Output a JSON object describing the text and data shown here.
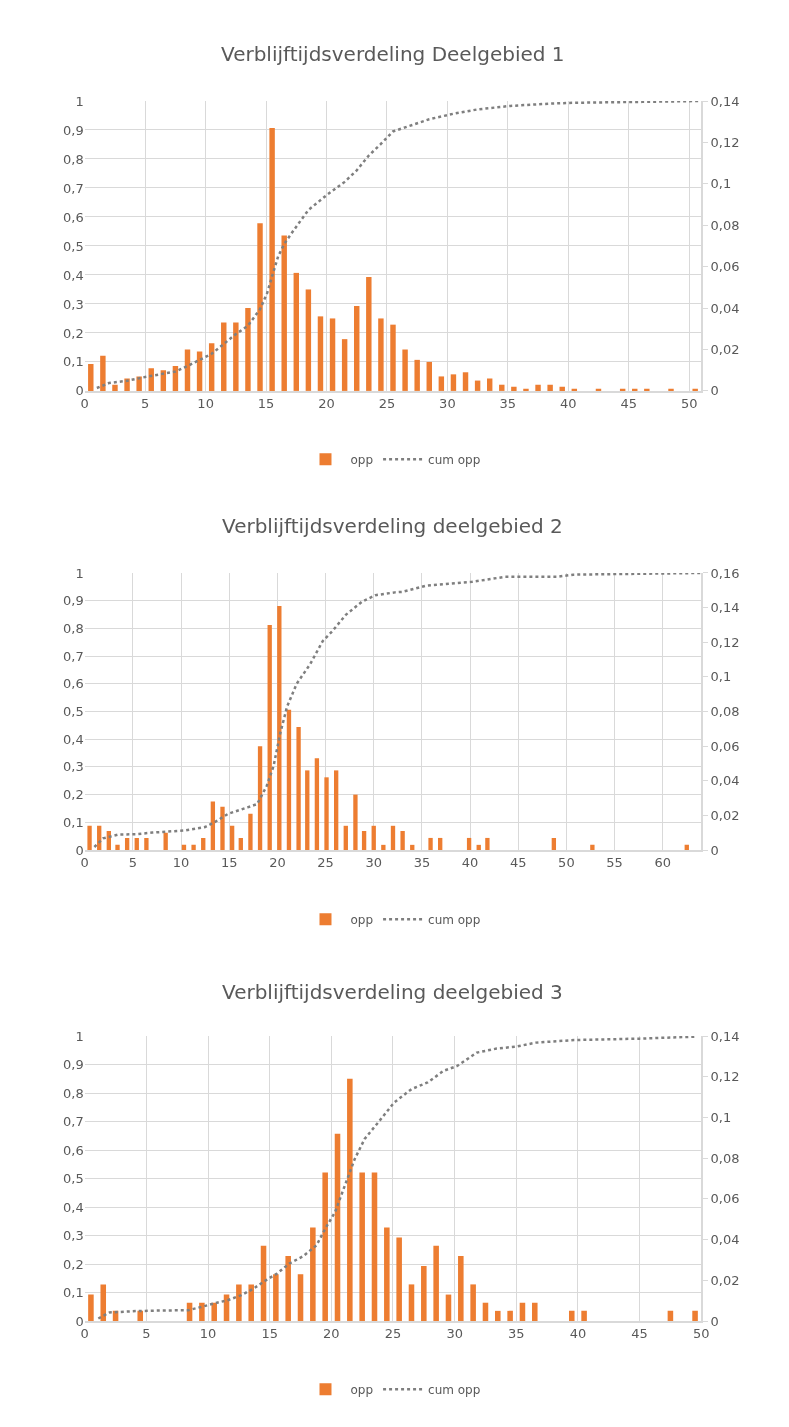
{
  "chart_data": [
    {
      "type": "bar",
      "title": "Verblijftijdsverdeling Deelgebied 1",
      "grid": true,
      "legend": "bottom",
      "xlim": [
        0,
        51
      ],
      "xticks": [
        0,
        5,
        10,
        15,
        20,
        25,
        30,
        35,
        40,
        45,
        50
      ],
      "ylim": [
        0,
        1
      ],
      "yticks": [
        0,
        {
          "value": 0.1,
          "label": "0,1"
        },
        {
          "value": 0.2,
          "label": "0,2"
        },
        {
          "value": 0.3,
          "label": "0,3"
        },
        {
          "value": 0.4,
          "label": "0,4"
        },
        {
          "value": 0.5,
          "label": "0,5"
        },
        {
          "value": 0.6,
          "label": "0,6"
        },
        {
          "value": 0.7,
          "label": "0,7"
        },
        {
          "value": 0.8,
          "label": "0,8"
        },
        {
          "value": 0.9,
          "label": "0,9"
        },
        1
      ],
      "y2lim": [
        0,
        0.14
      ],
      "y2ticks": [
        0,
        {
          "value": 0.02,
          "label": "0,02"
        },
        {
          "value": 0.04,
          "label": "0,04"
        },
        {
          "value": 0.06,
          "label": "0,06"
        },
        {
          "value": 0.08,
          "label": "0,08"
        },
        {
          "value": 0.1,
          "label": "0,1"
        },
        {
          "value": 0.12,
          "label": "0,12"
        },
        {
          "value": 0.14,
          "label": "0,14"
        }
      ],
      "series": [
        {
          "name": "opp",
          "axis": "y2",
          "color": "#ed7d31",
          "x": [
            0.5,
            1.5,
            2.5,
            3.5,
            4.5,
            5.5,
            6.5,
            7.5,
            8.5,
            9.5,
            10.5,
            11.5,
            12.5,
            13.5,
            14.5,
            15.5,
            16.5,
            17.5,
            18.5,
            19.5,
            20.5,
            21.5,
            22.5,
            23.5,
            24.5,
            25.5,
            26.5,
            27.5,
            28.5,
            29.5,
            30.5,
            31.5,
            32.5,
            33.5,
            34.5,
            35.5,
            36.5,
            37.5,
            38.5,
            39.5,
            40.5,
            42.5,
            44.5,
            45.5,
            46.5,
            48.5,
            50.5
          ],
          "values": [
            0.013,
            0.017,
            0.003,
            0.006,
            0.007,
            0.011,
            0.01,
            0.012,
            0.02,
            0.019,
            0.023,
            0.033,
            0.033,
            0.04,
            0.081,
            0.127,
            0.075,
            0.057,
            0.049,
            0.036,
            0.035,
            0.025,
            0.041,
            0.055,
            0.035,
            0.032,
            0.02,
            0.015,
            0.014,
            0.007,
            0.008,
            0.009,
            0.005,
            0.006,
            0.003,
            0.002,
            0.001,
            0.003,
            0.003,
            0.002,
            0.001,
            0.001,
            0.001,
            0.001,
            0.001,
            0.001,
            0.001
          ]
        },
        {
          "name": "cum opp",
          "type": "line",
          "line_style": "dotted",
          "color": "#7f7f7f",
          "x": [
            1.0,
            2.0,
            3.5,
            5.0,
            7.5,
            8.6,
            10.5,
            11.5,
            12.5,
            13.5,
            14.5,
            15.1,
            15.5,
            16.0,
            16.5,
            17.3,
            18.5,
            20.0,
            21.5,
            22.5,
            23.5,
            24.5,
            25.5,
            26.5,
            28.5,
            30.6,
            32.5,
            35.2,
            38.5,
            40.6,
            46.1,
            50.8
          ],
          "values": [
            0.01,
            0.027,
            0.035,
            0.048,
            0.067,
            0.088,
            0.128,
            0.162,
            0.196,
            0.225,
            0.282,
            0.339,
            0.396,
            0.464,
            0.507,
            0.555,
            0.624,
            0.675,
            0.721,
            0.761,
            0.812,
            0.852,
            0.895,
            0.909,
            0.937,
            0.957,
            0.971,
            0.983,
            0.991,
            0.994,
            0.997,
            1.0
          ]
        }
      ]
    },
    {
      "type": "bar",
      "title": "Verblijftijdsverdeling deelgebied 2",
      "grid": true,
      "legend": "bottom",
      "xlim": [
        0,
        64
      ],
      "xticks": [
        0,
        5,
        10,
        15,
        20,
        25,
        30,
        35,
        40,
        45,
        50,
        55,
        60
      ],
      "ylim": [
        0,
        1
      ],
      "yticks": [
        0,
        {
          "value": 0.1,
          "label": "0,1"
        },
        {
          "value": 0.2,
          "label": "0,2"
        },
        {
          "value": 0.3,
          "label": "0,3"
        },
        {
          "value": 0.4,
          "label": "0,4"
        },
        {
          "value": 0.5,
          "label": "0,5"
        },
        {
          "value": 0.6,
          "label": "0,6"
        },
        {
          "value": 0.7,
          "label": "0,7"
        },
        {
          "value": 0.8,
          "label": "0,8"
        },
        {
          "value": 0.9,
          "label": "0,9"
        },
        1
      ],
      "y2lim": [
        0,
        0.16
      ],
      "y2ticks": [
        0,
        {
          "value": 0.02,
          "label": "0,02"
        },
        {
          "value": 0.04,
          "label": "0,04"
        },
        {
          "value": 0.06,
          "label": "0,06"
        },
        {
          "value": 0.08,
          "label": "0,08"
        },
        {
          "value": 0.1,
          "label": "0,1"
        },
        {
          "value": 0.12,
          "label": "0,12"
        },
        {
          "value": 0.14,
          "label": "0,14"
        },
        {
          "value": 0.16,
          "label": "0,16"
        }
      ],
      "series": [
        {
          "name": "opp",
          "axis": "y2",
          "color": "#ed7d31",
          "x": [
            0.5,
            1.5,
            2.5,
            3.4,
            4.4,
            5.4,
            6.4,
            8.4,
            10.3,
            11.3,
            12.3,
            13.3,
            14.3,
            15.3,
            16.2,
            17.2,
            18.2,
            19.2,
            20.2,
            21.2,
            22.2,
            23.1,
            24.1,
            25.1,
            26.1,
            27.1,
            28.1,
            29.0,
            30.0,
            31.0,
            32.0,
            33.0,
            34.0,
            35.9,
            36.9,
            39.9,
            40.9,
            41.8,
            48.7,
            52.7,
            62.5
          ],
          "values": [
            0.014,
            0.014,
            0.011,
            0.003,
            0.007,
            0.007,
            0.007,
            0.01,
            0.003,
            0.003,
            0.007,
            0.028,
            0.025,
            0.014,
            0.007,
            0.021,
            0.06,
            0.13,
            0.141,
            0.081,
            0.071,
            0.046,
            0.053,
            0.042,
            0.046,
            0.014,
            0.032,
            0.011,
            0.014,
            0.003,
            0.014,
            0.011,
            0.003,
            0.007,
            0.007,
            0.007,
            0.003,
            0.007,
            0.007,
            0.003,
            0.003
          ]
        },
        {
          "name": "cum opp",
          "type": "line",
          "line_style": "dotted",
          "color": "#7f7f7f",
          "x": [
            1.0,
            1.9,
            3.5,
            5.3,
            7.0,
            8.4,
            10.4,
            12.5,
            13.5,
            14.9,
            16.9,
            17.9,
            18.9,
            19.6,
            20.3,
            21.0,
            22.0,
            23.4,
            24.7,
            25.7,
            27.1,
            28.8,
            30.2,
            32.2,
            33.0,
            35.4,
            40.2,
            43.6,
            49.0,
            50.7,
            63.9
          ],
          "values": [
            0.011,
            0.042,
            0.056,
            0.057,
            0.063,
            0.066,
            0.071,
            0.083,
            0.101,
            0.131,
            0.154,
            0.166,
            0.232,
            0.303,
            0.422,
            0.517,
            0.6,
            0.671,
            0.754,
            0.79,
            0.849,
            0.897,
            0.92,
            0.93,
            0.932,
            0.954,
            0.968,
            0.986,
            0.986,
            0.994,
            1.0
          ]
        }
      ]
    },
    {
      "type": "bar",
      "title": "Verblijftijdsverdeling deelgebied 3",
      "grid": true,
      "legend": "bottom",
      "xlim": [
        0,
        50
      ],
      "xticks": [
        0,
        5,
        10,
        15,
        20,
        25,
        30,
        35,
        40,
        45,
        50
      ],
      "ylim": [
        0,
        1
      ],
      "yticks": [
        0,
        {
          "value": 0.1,
          "label": "0,1"
        },
        {
          "value": 0.2,
          "label": "0,2"
        },
        {
          "value": 0.3,
          "label": "0,3"
        },
        {
          "value": 0.4,
          "label": "0,4"
        },
        {
          "value": 0.5,
          "label": "0,5"
        },
        {
          "value": 0.6,
          "label": "0,6"
        },
        {
          "value": 0.7,
          "label": "0,7"
        },
        {
          "value": 0.8,
          "label": "0,8"
        },
        {
          "value": 0.9,
          "label": "0,9"
        },
        1
      ],
      "y2lim": [
        0,
        0.14
      ],
      "y2ticks": [
        0,
        {
          "value": 0.02,
          "label": "0,02"
        },
        {
          "value": 0.04,
          "label": "0,04"
        },
        {
          "value": 0.06,
          "label": "0,06"
        },
        {
          "value": 0.08,
          "label": "0,08"
        },
        {
          "value": 0.1,
          "label": "0,1"
        },
        {
          "value": 0.12,
          "label": "0,12"
        },
        {
          "value": 0.14,
          "label": "0,14"
        }
      ],
      "series": [
        {
          "name": "opp",
          "axis": "y2",
          "color": "#ed7d31",
          "x": [
            0.5,
            1.5,
            2.5,
            4.5,
            8.5,
            9.5,
            10.5,
            11.5,
            12.5,
            13.5,
            14.5,
            15.5,
            16.5,
            17.5,
            18.5,
            19.5,
            20.5,
            21.5,
            22.5,
            23.5,
            24.5,
            25.5,
            26.5,
            27.5,
            28.5,
            29.5,
            30.5,
            31.5,
            32.5,
            33.5,
            34.5,
            35.5,
            36.5,
            39.5,
            40.5,
            47.5,
            49.5
          ],
          "values": [
            0.013,
            0.018,
            0.005,
            0.005,
            0.009,
            0.009,
            0.009,
            0.013,
            0.018,
            0.018,
            0.037,
            0.023,
            0.032,
            0.023,
            0.046,
            0.073,
            0.092,
            0.119,
            0.073,
            0.073,
            0.046,
            0.041,
            0.018,
            0.027,
            0.037,
            0.013,
            0.032,
            0.018,
            0.009,
            0.005,
            0.005,
            0.009,
            0.009,
            0.005,
            0.005,
            0.005,
            0.005
          ]
        },
        {
          "name": "cum opp",
          "type": "line",
          "line_style": "dotted",
          "color": "#7f7f7f",
          "x": [
            1.1,
            2.0,
            4.2,
            6.3,
            8.4,
            9.5,
            10.5,
            11.6,
            12.7,
            13.7,
            14.5,
            15.6,
            16.6,
            17.7,
            18.8,
            19.5,
            20.3,
            21.1,
            21.9,
            22.7,
            23.8,
            25.1,
            26.5,
            27.8,
            29.1,
            30.2,
            31.8,
            33.4,
            35.0,
            36.6,
            39.7,
            45.0,
            49.5
          ],
          "values": [
            0.009,
            0.03,
            0.035,
            0.037,
            0.038,
            0.05,
            0.062,
            0.073,
            0.091,
            0.114,
            0.138,
            0.167,
            0.202,
            0.227,
            0.266,
            0.324,
            0.382,
            0.476,
            0.569,
            0.639,
            0.697,
            0.767,
            0.814,
            0.837,
            0.878,
            0.895,
            0.942,
            0.956,
            0.963,
            0.977,
            0.986,
            0.991,
            0.998
          ]
        }
      ]
    }
  ]
}
